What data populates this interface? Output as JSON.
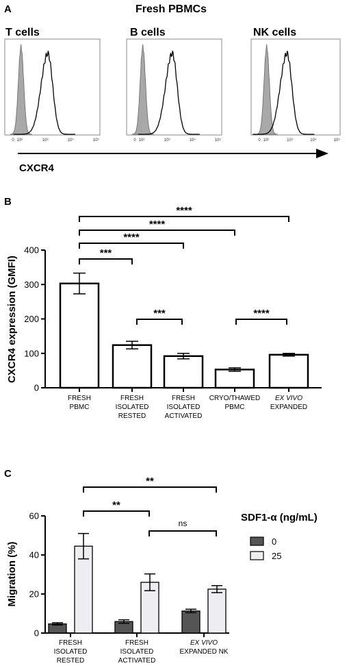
{
  "chart_data": [
    {
      "panel": "A",
      "type": "histogram",
      "title": "Fresh PBMCs",
      "xlabel": "CXCR4",
      "x_ticks": [
        "0",
        "10²",
        "10³",
        "10⁴",
        "10⁵"
      ],
      "panels": [
        {
          "name": "T cells",
          "control_peak_decade": 0.35,
          "stain_peak_decade": 1.15
        },
        {
          "name": "B cells",
          "control_peak_decade": 0.35,
          "stain_peak_decade": 1.25
        },
        {
          "name": "NK cells",
          "control_peak_decade": 0.35,
          "stain_peak_decade": 0.95
        }
      ]
    },
    {
      "panel": "B",
      "type": "bar",
      "ylabel": "CXCR4 expression (GMFI)",
      "ylim": [
        0,
        400
      ],
      "yticks": [
        0,
        100,
        200,
        300,
        400
      ],
      "categories": [
        {
          "lines": [
            "FRESH",
            "PBMC"
          ],
          "italic": [
            false,
            false
          ]
        },
        {
          "lines": [
            "FRESH",
            "ISOLATED",
            "RESTED"
          ],
          "italic": [
            false,
            false,
            false
          ]
        },
        {
          "lines": [
            "FRESH",
            "ISOLATED",
            "ACTIVATED"
          ],
          "italic": [
            false,
            false,
            false
          ]
        },
        {
          "lines": [
            "CRYO/THAWED",
            "PBMC"
          ],
          "italic": [
            false,
            false
          ]
        },
        {
          "lines": [
            "EX VIVO",
            "EXPANDED"
          ],
          "italic": [
            true,
            false
          ]
        }
      ],
      "values": [
        303,
        124,
        92,
        53,
        96
      ],
      "errors": [
        30,
        11,
        8,
        5,
        4
      ],
      "significance": [
        {
          "from": 0,
          "to": 1,
          "label": "***"
        },
        {
          "from": 0,
          "to": 2,
          "label": "****"
        },
        {
          "from": 0,
          "to": 3,
          "label": "****"
        },
        {
          "from": 0,
          "to": 4,
          "label": "****"
        },
        {
          "from": 1,
          "to": 2,
          "label": "***"
        },
        {
          "from": 3,
          "to": 4,
          "label": "****"
        }
      ]
    },
    {
      "panel": "C",
      "type": "bar",
      "ylabel": "Migration (%)",
      "ylim": [
        0,
        60
      ],
      "yticks": [
        0,
        20,
        40,
        60
      ],
      "legend_title": "SDF1-α (ng/mL)",
      "categories": [
        {
          "lines": [
            "FRESH",
            "ISOLATED",
            "RESTED"
          ],
          "italic": [
            false,
            false,
            false
          ]
        },
        {
          "lines": [
            "FRESH",
            "ISOLATED",
            "ACTIVATED"
          ],
          "italic": [
            false,
            false,
            false
          ]
        },
        {
          "lines": [
            "EX VIVO",
            "EXPANDED NK"
          ],
          "italic": [
            true,
            false
          ]
        }
      ],
      "series": [
        {
          "name": "0",
          "color": "#555555",
          "values": [
            4.7,
            5.9,
            11.3
          ],
          "errors": [
            0.6,
            0.9,
            0.9
          ]
        },
        {
          "name": "25",
          "color": "#eeeef2",
          "values": [
            44.5,
            26.0,
            22.5
          ],
          "errors": [
            6.5,
            4.3,
            1.8
          ]
        }
      ],
      "significance": [
        {
          "from": 0,
          "to": 2,
          "label": "**"
        },
        {
          "from": 0,
          "to": 1,
          "label": "**"
        },
        {
          "from": 1,
          "to": 2,
          "label": "ns"
        }
      ]
    }
  ],
  "panel_labels": {
    "a": "A",
    "b": "B",
    "c": "C"
  }
}
